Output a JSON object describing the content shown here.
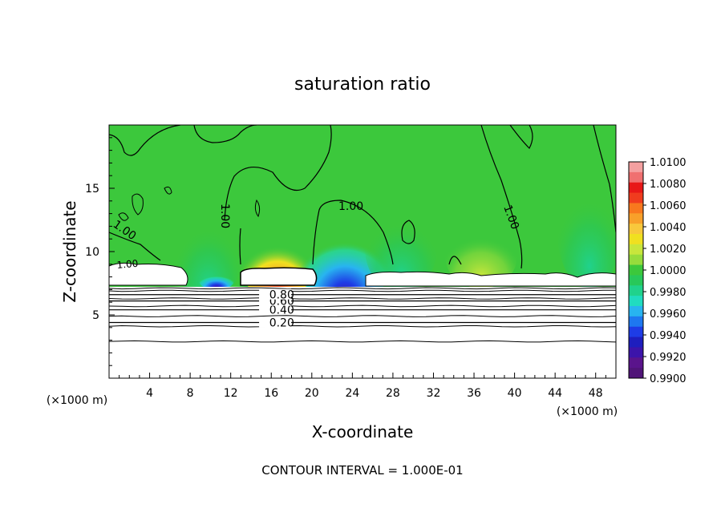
{
  "chart_data": {
    "type": "heatmap",
    "title": "saturation ratio",
    "xlabel": "X-coordinate",
    "ylabel": "Z-coordinate",
    "x_unit": "(×1000 m)",
    "y_unit": "(×1000 m)",
    "xlim": [
      0,
      50
    ],
    "ylim": [
      0,
      20
    ],
    "x_ticks": [
      4,
      8,
      12,
      16,
      20,
      24,
      28,
      32,
      36,
      40,
      44,
      48
    ],
    "y_ticks": [
      5,
      10,
      15
    ],
    "contour_interval_text": "CONTOUR INTERVAL = 1.000E-01",
    "colorbar": {
      "labels": [
        "1.0100",
        "1.0080",
        "1.0060",
        "1.0040",
        "1.0020",
        "1.0000",
        "0.9980",
        "0.9960",
        "0.9940",
        "0.9920",
        "0.9900"
      ],
      "values": [
        1.01,
        1.009,
        1.008,
        1.007,
        1.006,
        1.005,
        1.004,
        1.003,
        1.002,
        1.001,
        1.0,
        0.999,
        0.998,
        0.997,
        0.996,
        0.995,
        0.994,
        0.993,
        0.992,
        0.991,
        0.99
      ],
      "colors": [
        "#f4a0a0",
        "#f07070",
        "#e81818",
        "#f03c1e",
        "#f8781e",
        "#f8a02a",
        "#f8c83c",
        "#f0e020",
        "#c8e63c",
        "#96dc3c",
        "#3cc83c",
        "#28c85a",
        "#20d28c",
        "#20dcc0",
        "#28b4f0",
        "#1e78f0",
        "#1e3ce6",
        "#1e1ebe",
        "#3c14aa",
        "#5a148c",
        "#501478"
      ]
    },
    "contour_labels": [
      "1.00",
      "1.00",
      "1.00",
      "1.00",
      "1.00",
      "0.80",
      "0.60",
      "0.40",
      "0.20"
    ],
    "horizontal_contours": [
      {
        "level": 0.2,
        "z": 4.4
      },
      {
        "level": 0.4,
        "z": 5.4
      },
      {
        "level": 0.6,
        "z": 6.1
      },
      {
        "level": 0.8,
        "z": 6.6
      }
    ],
    "extra_contour_z": [
      2.9,
      4.1,
      4.9,
      5.7,
      6.3,
      6.9,
      7.1
    ],
    "cloud_layer_z": [
      7.2,
      8.7
    ],
    "background_value": 1.0
  }
}
